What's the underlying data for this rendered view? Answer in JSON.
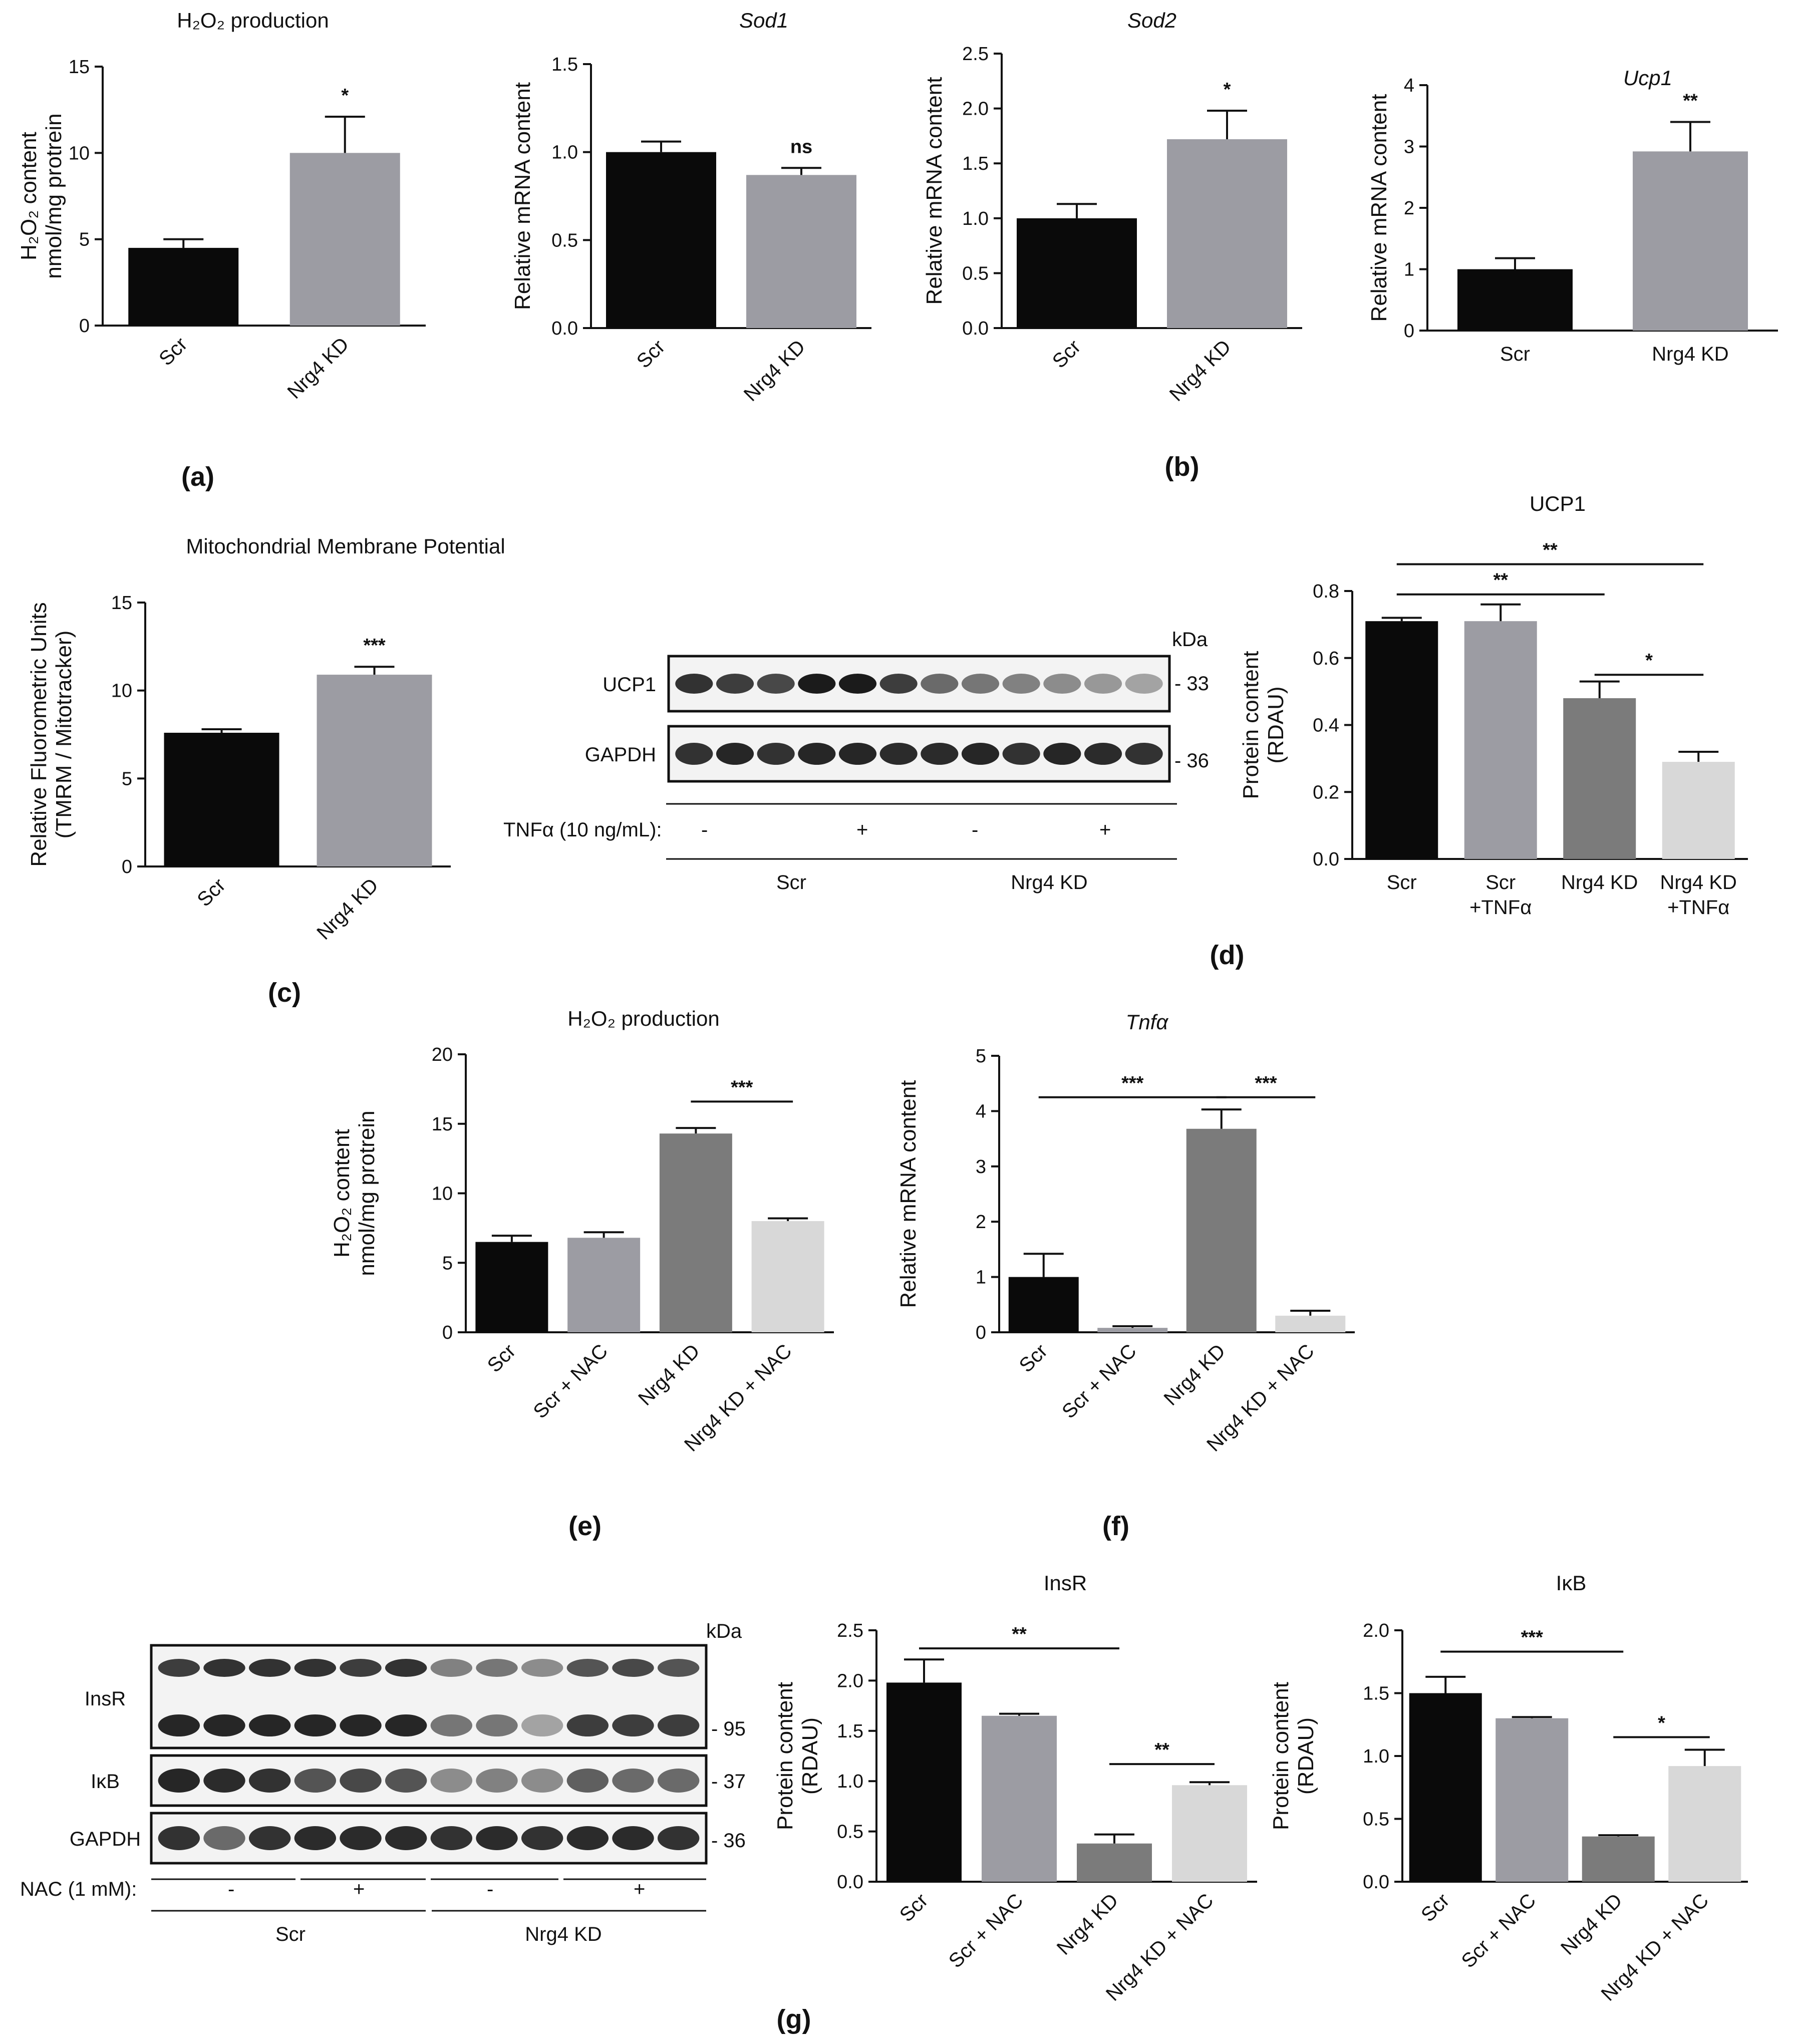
{
  "colors": {
    "scr": "#0a0a0a",
    "scr_tnf": "#9c9ca3",
    "kd": "#7b7b7b",
    "kd_tnf": "#d8d8d8",
    "axis": "#111111"
  },
  "panel_labels": {
    "a": "(a)",
    "b": "(b)",
    "c": "(c)",
    "d": "(d)",
    "e": "(e)",
    "f": "(f)",
    "g": "(g)"
  },
  "chart_data": [
    {
      "id": "a",
      "type": "bar",
      "title": "H₂O₂ production",
      "ylabel": [
        "H₂O₂ content",
        "nmol/mg protrein"
      ],
      "categories": [
        "Scr",
        "Nrg4 KD"
      ],
      "values": [
        4.5,
        10
      ],
      "errors": [
        0.5,
        2.1
      ],
      "ylim": [
        0,
        15
      ],
      "yticks": [
        "0",
        "5",
        "10",
        "15"
      ],
      "colors": [
        "#0a0a0a",
        "#9c9ca3"
      ],
      "sig": [
        {
          "text": "*",
          "bar": 1
        }
      ],
      "xrot": true
    },
    {
      "id": "b1",
      "type": "bar",
      "title": "Sod1",
      "title_italic": true,
      "ylabel": [
        "Relative mRNA content"
      ],
      "categories": [
        "Scr",
        "Nrg4 KD"
      ],
      "values": [
        1.0,
        0.87
      ],
      "errors": [
        0.06,
        0.04
      ],
      "ylim": [
        0,
        1.5
      ],
      "yticks": [
        "0.0",
        "0.5",
        "1.0",
        "1.5"
      ],
      "colors": [
        "#0a0a0a",
        "#9c9ca3"
      ],
      "sig": [
        {
          "text": "ns",
          "bar": 1
        }
      ],
      "xrot": true
    },
    {
      "id": "b2",
      "type": "bar",
      "title": "Sod2",
      "title_italic": true,
      "ylabel": [
        "Relative mRNA content"
      ],
      "categories": [
        "Scr",
        "Nrg4 KD"
      ],
      "values": [
        1.0,
        1.72
      ],
      "errors": [
        0.13,
        0.26
      ],
      "ylim": [
        0,
        2.5
      ],
      "yticks": [
        "0.0",
        "0.5",
        "1.0",
        "1.5",
        "2.0",
        "2.5"
      ],
      "colors": [
        "#0a0a0a",
        "#9c9ca3"
      ],
      "sig": [
        {
          "text": "*",
          "bar": 1
        }
      ],
      "xrot": true
    },
    {
      "id": "b3",
      "type": "bar",
      "title": "Ucp1",
      "title_italic": true,
      "ylabel": [
        "Relative mRNA content"
      ],
      "categories": [
        "Scr",
        "Nrg4 KD"
      ],
      "values": [
        1.0,
        2.92
      ],
      "errors": [
        0.18,
        0.48
      ],
      "ylim": [
        0,
        4
      ],
      "yticks": [
        "0",
        "1",
        "2",
        "3",
        "4"
      ],
      "colors": [
        "#0a0a0a",
        "#9c9ca3"
      ],
      "sig": [
        {
          "text": "**",
          "bar": 1
        }
      ],
      "xrot": false
    },
    {
      "id": "c",
      "type": "bar",
      "title": "Mitochondrial Membrane Potential",
      "ylabel": [
        "Relative Fluorometric Units",
        "(TMRM / Mitotracker)"
      ],
      "categories": [
        "Scr",
        "Nrg4 KD"
      ],
      "values": [
        7.6,
        10.9
      ],
      "errors": [
        0.2,
        0.45
      ],
      "ylim": [
        0,
        15
      ],
      "yticks": [
        "0",
        "5",
        "10",
        "15"
      ],
      "colors": [
        "#0a0a0a",
        "#9c9ca3"
      ],
      "sig": [
        {
          "text": "***",
          "bar": 1
        }
      ],
      "xrot": true
    },
    {
      "id": "d",
      "type": "bar",
      "title": "UCP1",
      "ylabel": [
        "Protein content",
        "(RDAU)"
      ],
      "categories": [
        "Scr",
        "Scr\n+TNFα",
        "Nrg4 KD",
        "Nrg4 KD\n+TNFα"
      ],
      "values": [
        0.71,
        0.71,
        0.48,
        0.29
      ],
      "errors": [
        0.01,
        0.05,
        0.05,
        0.03
      ],
      "ylim": [
        0,
        0.8
      ],
      "yticks": [
        "0.0",
        "0.2",
        "0.4",
        "0.6",
        "0.8"
      ],
      "colors": [
        "#0a0a0a",
        "#9c9ca3",
        "#7b7b7b",
        "#d8d8d8"
      ],
      "brackets": [
        {
          "from": 0,
          "to": 2,
          "text": "**",
          "y": 0.79
        },
        {
          "from": 0,
          "to": 3,
          "text": "**",
          "y": 0.88
        },
        {
          "from": 2,
          "to": 3,
          "text": "*",
          "y": 0.55
        }
      ],
      "xrot": false
    },
    {
      "id": "e",
      "type": "bar",
      "title": "H₂O₂ production",
      "ylabel": [
        "H₂O₂ content",
        "nmol/mg protrein"
      ],
      "categories": [
        "Scr",
        "Scr + NAC",
        "Nrg4 KD",
        "Nrg4 KD + NAC"
      ],
      "values": [
        6.5,
        6.8,
        14.3,
        8.0
      ],
      "errors": [
        0.45,
        0.4,
        0.4,
        0.2
      ],
      "ylim": [
        0,
        20
      ],
      "yticks": [
        "0",
        "5",
        "10",
        "15",
        "20"
      ],
      "colors": [
        "#0a0a0a",
        "#9c9ca3",
        "#7b7b7b",
        "#d8d8d8"
      ],
      "brackets": [
        {
          "from": 2,
          "to": 3,
          "text": "***",
          "y": 16.6
        }
      ],
      "xrot": true
    },
    {
      "id": "f",
      "type": "bar",
      "title": "Tnfα",
      "title_italic": true,
      "ylabel": [
        "Relative mRNA content"
      ],
      "categories": [
        "Scr",
        "Scr + NAC",
        "Nrg4 KD",
        "Nrg4 KD + NAC"
      ],
      "values": [
        1.0,
        0.08,
        3.68,
        0.3
      ],
      "errors": [
        0.42,
        0.03,
        0.35,
        0.09
      ],
      "ylim": [
        0,
        5
      ],
      "yticks": [
        "0",
        "1",
        "2",
        "3",
        "4",
        "5"
      ],
      "colors": [
        "#0a0a0a",
        "#9c9ca3",
        "#7b7b7b",
        "#d8d8d8"
      ],
      "brackets": [
        {
          "from": 0,
          "to": 2,
          "text": "***",
          "y": 4.25
        },
        {
          "from": 2,
          "to": 3,
          "text": "***",
          "y": 4.25
        }
      ],
      "xrot": true
    },
    {
      "id": "g1",
      "type": "bar",
      "title": "InsR",
      "ylabel": [
        "Protein content",
        "(RDAU)"
      ],
      "categories": [
        "Scr",
        "Scr + NAC",
        "Nrg4 KD",
        "Nrg4 KD + NAC"
      ],
      "values": [
        1.98,
        1.65,
        0.38,
        0.96
      ],
      "errors": [
        0.23,
        0.02,
        0.09,
        0.03
      ],
      "ylim": [
        0,
        2.5
      ],
      "yticks": [
        "0.0",
        "0.5",
        "1.0",
        "1.5",
        "2.0",
        "2.5"
      ],
      "colors": [
        "#0a0a0a",
        "#9c9ca3",
        "#7b7b7b",
        "#d8d8d8"
      ],
      "brackets": [
        {
          "from": 0,
          "to": 2,
          "text": "**",
          "y": 2.32
        },
        {
          "from": 2,
          "to": 3,
          "text": "**",
          "y": 1.17
        }
      ],
      "xrot": true
    },
    {
      "id": "g2",
      "type": "bar",
      "title": "IκB",
      "ylabel": [
        "Protein content",
        "(RDAU)"
      ],
      "categories": [
        "Scr",
        "Scr + NAC",
        "Nrg4 KD",
        "Nrg4 KD + NAC"
      ],
      "values": [
        1.5,
        1.3,
        0.36,
        0.92
      ],
      "errors": [
        0.13,
        0.01,
        0.01,
        0.13
      ],
      "ylim": [
        0,
        2.0
      ],
      "yticks": [
        "0.0",
        "0.5",
        "1.0",
        "1.5",
        "2.0"
      ],
      "colors": [
        "#0a0a0a",
        "#9c9ca3",
        "#7b7b7b",
        "#d8d8d8"
      ],
      "brackets": [
        {
          "from": 0,
          "to": 2,
          "text": "***",
          "y": 1.83
        },
        {
          "from": 2,
          "to": 3,
          "text": "*",
          "y": 1.15
        }
      ],
      "xrot": true
    }
  ],
  "blots": {
    "d": {
      "kda_label": "kDa",
      "rows": [
        {
          "name": "UCP1",
          "kda": "- 33"
        },
        {
          "name": "GAPDH",
          "kda": "- 36"
        }
      ],
      "treatment": "TNFα (10 ng/mL):",
      "signs": [
        "-",
        "+",
        "-",
        "+"
      ],
      "groups": [
        "Scr",
        "Nrg4 KD"
      ]
    },
    "g": {
      "kda_label": "kDa",
      "rows": [
        {
          "name": "InsR",
          "kda": "- 95"
        },
        {
          "name": "IκB",
          "kda": "- 37"
        },
        {
          "name": "GAPDH",
          "kda": "- 36"
        }
      ],
      "treatment": "NAC (1 mM):",
      "signs": [
        "-",
        "+",
        "-",
        "+"
      ],
      "groups": [
        "Scr",
        "Nrg4 KD"
      ]
    }
  }
}
